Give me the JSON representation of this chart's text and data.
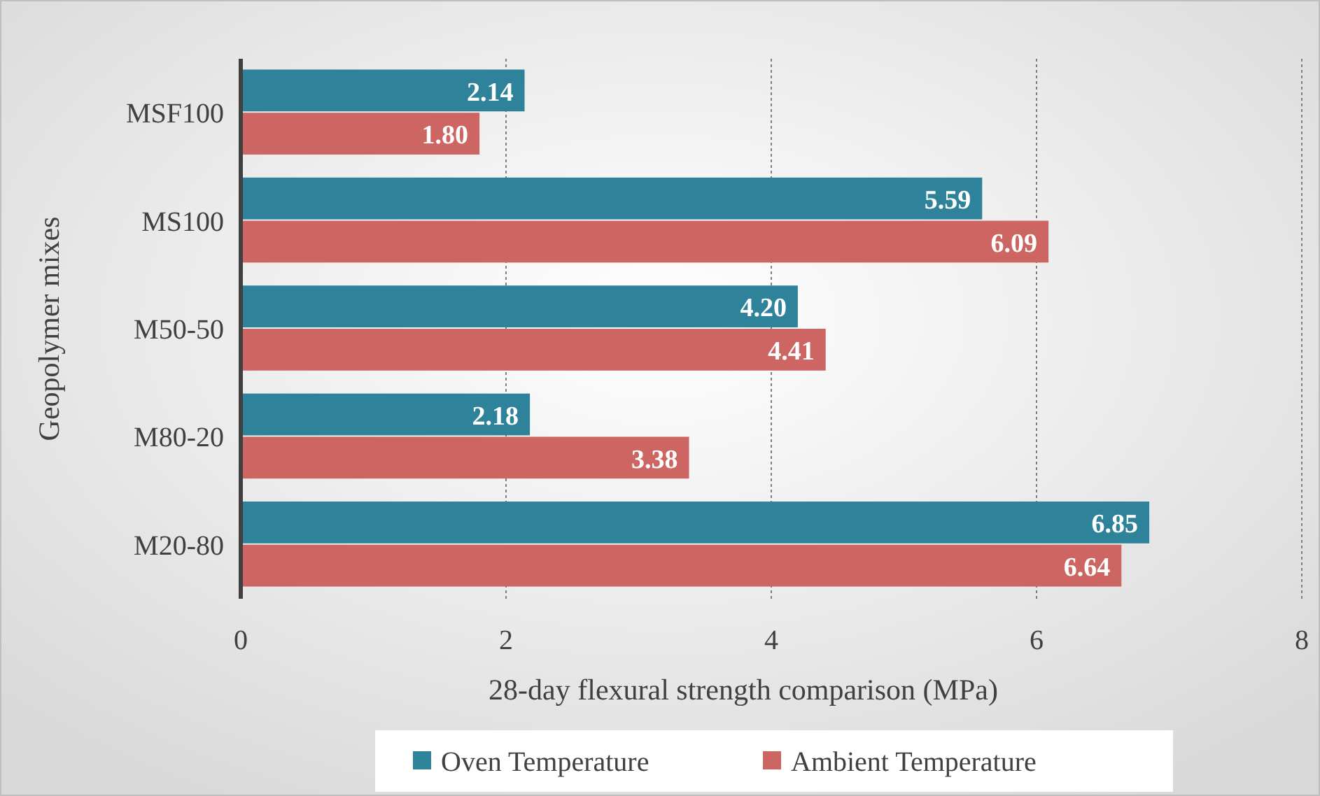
{
  "chart_data": {
    "type": "bar",
    "orientation": "horizontal",
    "xlabel": "28-day flexural strength comparison (MPa)",
    "ylabel": "Geopolymer mixes",
    "categories": [
      "MSF100",
      "MS100",
      "M50-50",
      "M80-20",
      "M20-80"
    ],
    "series": [
      {
        "name": "Oven Temperature",
        "color": "#2e8299",
        "values": [
          2.14,
          5.59,
          4.2,
          2.18,
          6.85
        ]
      },
      {
        "name": "Ambient Temperature",
        "color": "#cd6562",
        "values": [
          1.8,
          6.09,
          4.41,
          3.38,
          6.64
        ]
      }
    ],
    "value_labels": [
      [
        "2.14",
        "5.59",
        "4.20",
        "2.18",
        "6.85"
      ],
      [
        "1.80",
        "6.09",
        "4.41",
        "3.38",
        "6.64"
      ]
    ],
    "xlim": [
      0,
      8
    ],
    "xticks": [
      0,
      2,
      4,
      6,
      8
    ],
    "grid": "x",
    "legend": "bottom"
  }
}
